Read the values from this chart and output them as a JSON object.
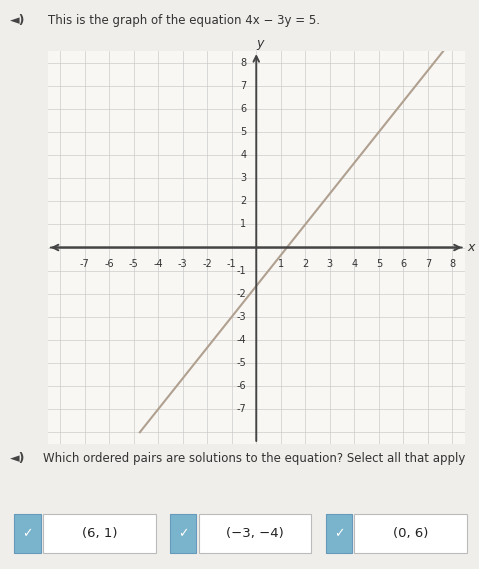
{
  "title_speaker": "◄)",
  "title_icon": "★",
  "title_text": "This is the graph of the equation 4x − 3y = 5.",
  "equation": "4x - 3y = 5",
  "xlim": [
    -8.5,
    8.5
  ],
  "ylim": [
    -8.5,
    8.5
  ],
  "line_x_start": -4.75,
  "line_x_end": 8.1,
  "line_color": "#b0a090",
  "line_width": 1.5,
  "axis_color": "#444444",
  "grid_color": "#cccccc",
  "grid_lw": 0.5,
  "bg_color": "#f0eeea",
  "plot_bg": "#f8f7f4",
  "question_speaker": "◄)",
  "question_text": "Which ordered pairs are solutions to the equation? Select all that apply",
  "choices": [
    "(6, 1)",
    "(−3, −4)",
    "(0, 6)"
  ],
  "checked": [
    true,
    true,
    true
  ],
  "check_color": "#7ab4cc",
  "choice_bg": "#ffffff",
  "title_fontsize": 8.5,
  "question_fontsize": 8.5,
  "tick_fontsize": 7,
  "axis_label_fontsize": 9
}
